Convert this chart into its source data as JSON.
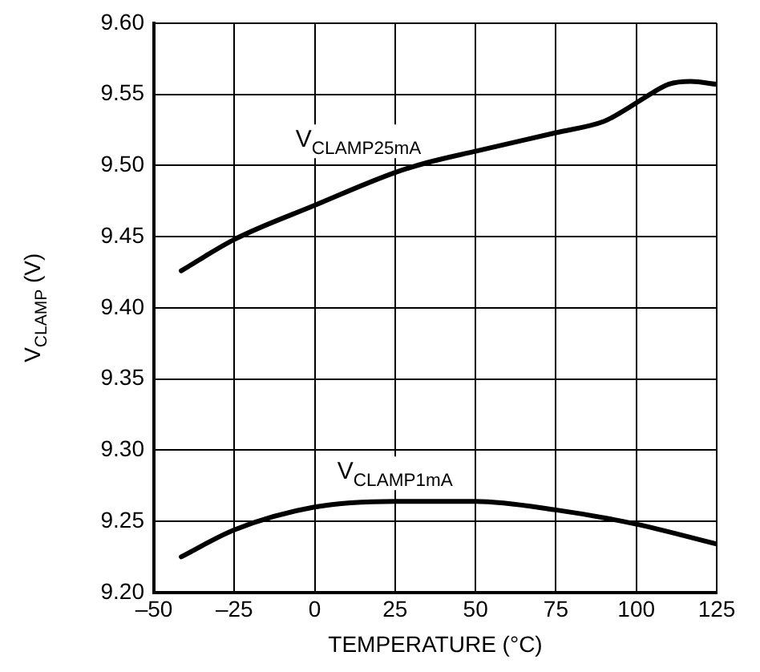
{
  "chart_data": {
    "type": "line",
    "xlabel": "TEMPERATURE (°C)",
    "ylabel": "V$_{CLAMP}$ (V)",
    "xlim": [
      -50,
      125
    ],
    "xticks": [
      {
        "value": -50,
        "label": "–50"
      },
      {
        "value": -25,
        "label": "–25"
      },
      0,
      25,
      50,
      75,
      100,
      125
    ],
    "ylim": [
      9.2,
      9.6
    ],
    "yticks": [
      {
        "value": 9.2,
        "label": "9.20"
      },
      {
        "value": 9.25,
        "label": "9.25"
      },
      {
        "value": 9.3,
        "label": "9.30"
      },
      {
        "value": 9.35,
        "label": "9.35"
      },
      {
        "value": 9.4,
        "label": "9.40"
      },
      {
        "value": 9.45,
        "label": "9.45"
      },
      {
        "value": 9.5,
        "label": "9.50"
      },
      {
        "value": 9.55,
        "label": "9.55"
      },
      {
        "value": 9.6,
        "label": "9.60"
      }
    ],
    "grid": true,
    "legend": false,
    "marker": "none",
    "line_style": "solid",
    "series": [
      {
        "name": "V$_{CLAMP25mA}$",
        "color": "#000000",
        "x": [
          -41.5,
          -25,
          0,
          25,
          35,
          50,
          75,
          90,
          95,
          105,
          110,
          117,
          125
        ],
        "values": [
          9.426,
          9.448,
          9.472,
          9.495,
          9.502,
          9.51,
          9.523,
          9.531,
          9.537,
          9.551,
          9.557,
          9.559,
          9.557
        ]
      },
      {
        "name": "V$_{CLAMP1mA}$",
        "color": "#000000",
        "x": [
          -41.5,
          -25,
          0,
          25,
          50,
          75,
          100,
          125
        ],
        "values": [
          9.225,
          9.244,
          9.26,
          9.264,
          9.264,
          9.258,
          9.248,
          9.234
        ]
      }
    ]
  }
}
